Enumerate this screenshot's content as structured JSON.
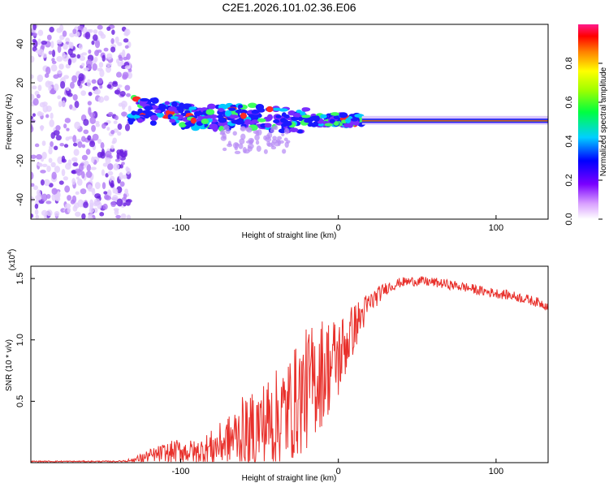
{
  "title": "C2E1.2026.101.02.36.E06",
  "chart_data": [
    {
      "type": "heatmap",
      "xlabel": "Height of straight line (km)",
      "ylabel": "Frequency (Hz)",
      "xlim": [
        -195,
        133
      ],
      "ylim": [
        -50,
        50
      ],
      "xticks": [
        -100,
        0,
        100
      ],
      "yticks": [
        -40,
        -20,
        0,
        20,
        40
      ],
      "colorbar": {
        "label": "Normalized spectral amplitude",
        "range": [
          0,
          1
        ],
        "ticks": [
          "0.0",
          "0.2",
          "0.4",
          "0.6",
          "0.8"
        ]
      },
      "features": {
        "noise_region_x": [
          -195,
          -132
        ],
        "signal_trace": [
          [
            -130,
            7
          ],
          [
            -100,
            3
          ],
          [
            -80,
            2
          ],
          [
            -60,
            3
          ],
          [
            -40,
            1
          ],
          [
            -20,
            1
          ],
          [
            0,
            1
          ],
          [
            15,
            0.5
          ],
          [
            133,
            0.5
          ]
        ],
        "steady_tone_start_x": 15
      }
    },
    {
      "type": "line",
      "xlabel": "Height of straight line (km)",
      "ylabel": "SNR (10 * v/v)",
      "scale_base": "(x10",
      "scale_exponent": "4",
      "scale_close": ")",
      "xlim": [
        -195,
        133
      ],
      "ylim": [
        0,
        1.6
      ],
      "xticks": [
        -100,
        0,
        100
      ],
      "yticks": [
        "0.5",
        "1.0",
        "1.5"
      ],
      "series": [
        {
          "name": "SNR",
          "color": "#e8302b",
          "envelope": {
            "x": [
              -195,
              -140,
              -130,
              -120,
              -110,
              -100,
              -90,
              -80,
              -70,
              -60,
              -50,
              -40,
              -30,
              -20,
              -10,
              0,
              10,
              20,
              30,
              40,
              50,
              60,
              70,
              80,
              90,
              100,
              110,
              120,
              133
            ],
            "base": [
              0.01,
              0.01,
              0.02,
              0.05,
              0.08,
              0.1,
              0.08,
              0.12,
              0.18,
              0.25,
              0.3,
              0.35,
              0.45,
              0.6,
              0.75,
              0.85,
              1.1,
              1.3,
              1.42,
              1.47,
              1.48,
              1.47,
              1.45,
              1.43,
              1.4,
              1.38,
              1.36,
              1.33,
              1.28
            ],
            "spread": [
              0.005,
              0.005,
              0.02,
              0.06,
              0.08,
              0.1,
              0.1,
              0.15,
              0.2,
              0.3,
              0.35,
              0.4,
              0.45,
              0.5,
              0.45,
              0.35,
              0.2,
              0.1,
              0.05,
              0.04,
              0.04,
              0.04,
              0.04,
              0.04,
              0.04,
              0.04,
              0.04,
              0.04,
              0.04
            ]
          }
        }
      ]
    }
  ]
}
